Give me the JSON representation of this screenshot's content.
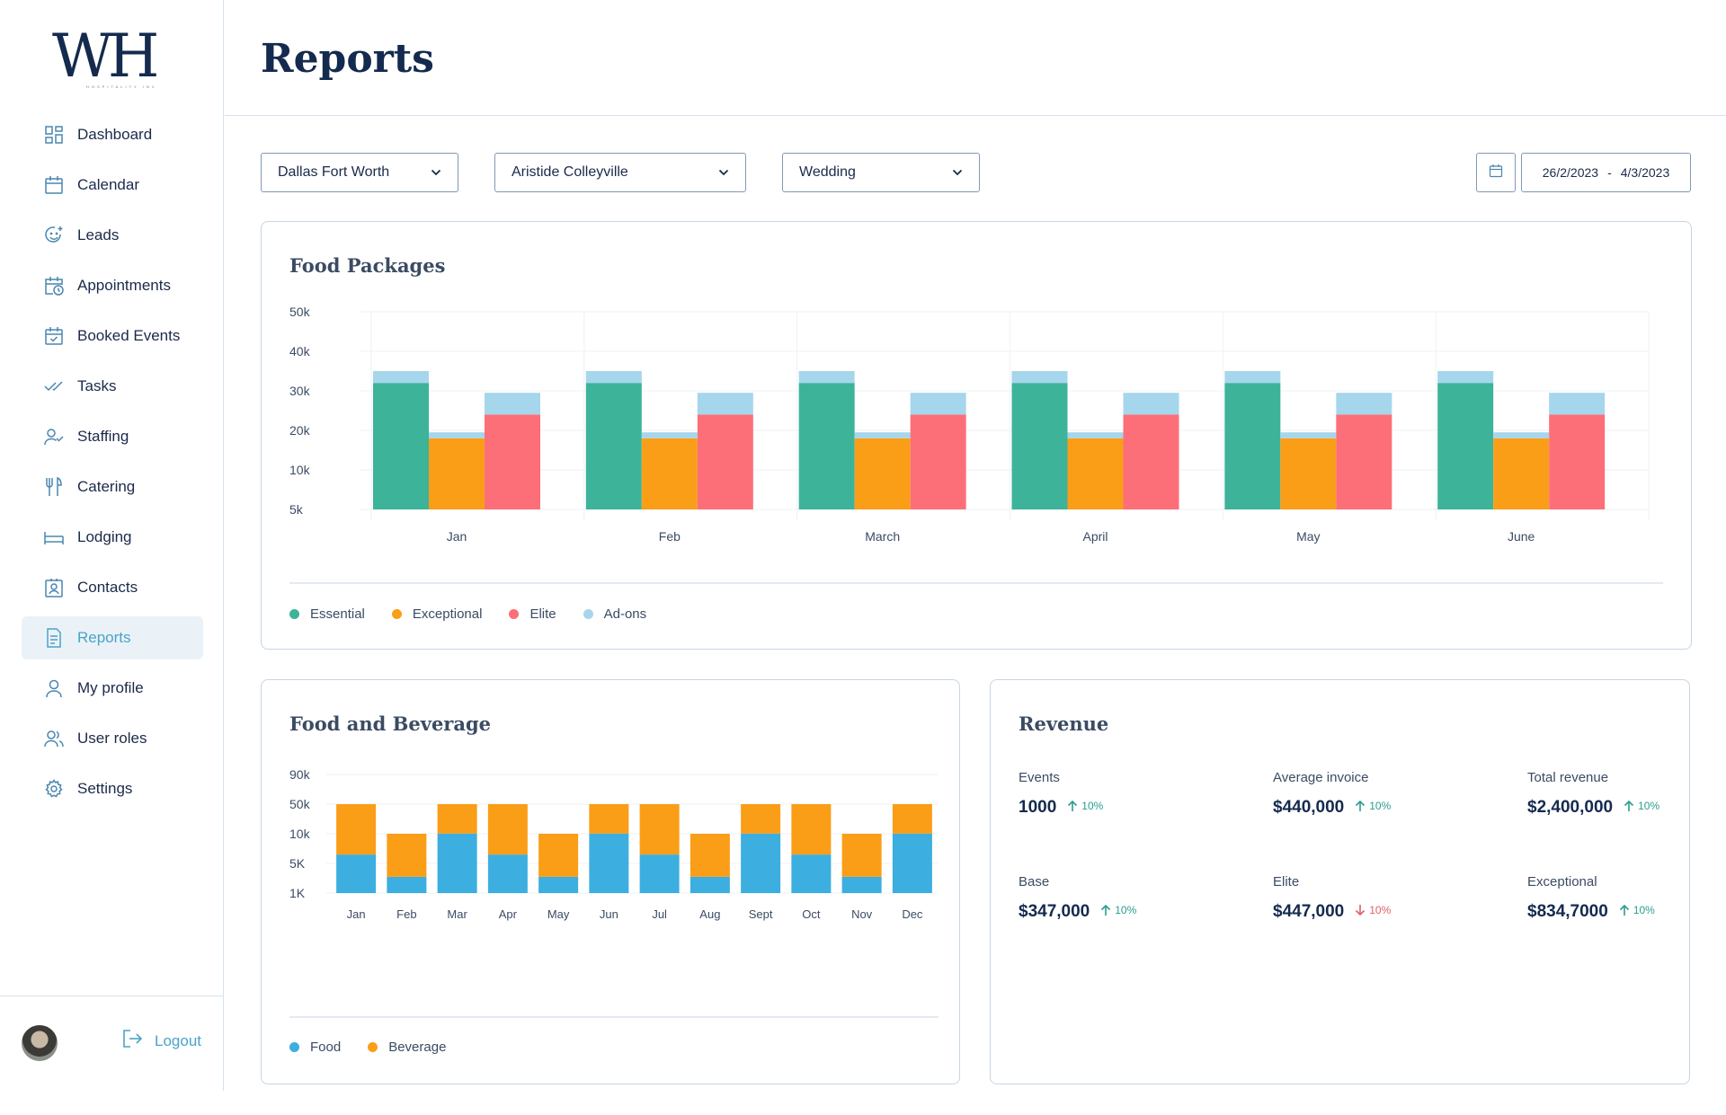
{
  "app": {
    "logo_text": "WH",
    "logo_subtext": "HOSPITALITY INC"
  },
  "sidebar": {
    "items": [
      {
        "label": "Dashboard",
        "icon": "dashboard-icon"
      },
      {
        "label": "Calendar",
        "icon": "calendar-icon"
      },
      {
        "label": "Leads",
        "icon": "smile-plus-icon"
      },
      {
        "label": "Appointments",
        "icon": "calendar-clock-icon"
      },
      {
        "label": "Booked Events",
        "icon": "calendar-check-icon"
      },
      {
        "label": "Tasks",
        "icon": "double-check-icon"
      },
      {
        "label": "Staffing",
        "icon": "user-check-icon"
      },
      {
        "label": "Catering",
        "icon": "fork-knife-icon"
      },
      {
        "label": "Lodging",
        "icon": "bed-icon"
      },
      {
        "label": "Contacts",
        "icon": "contact-card-icon"
      },
      {
        "label": "Reports",
        "icon": "report-icon",
        "active": true
      },
      {
        "label": "My profile",
        "icon": "user-icon"
      },
      {
        "label": "User roles",
        "icon": "users-icon"
      },
      {
        "label": "Settings",
        "icon": "gear-icon"
      }
    ],
    "logout_label": "Logout"
  },
  "header": {
    "title": "Reports"
  },
  "filters": {
    "region": "Dallas Fort Worth",
    "venue": "Aristide Colleyville",
    "event_type": "Wedding",
    "date_start": "26/2/2023",
    "date_separator": "-",
    "date_end": "4/3/2023"
  },
  "food_packages": {
    "title": "Food Packages",
    "legend": [
      "Essential",
      "Exceptional",
      "Elite",
      "Ad-ons"
    ]
  },
  "food_beverage": {
    "title": "Food and Beverage",
    "legend": [
      "Food",
      "Beverage"
    ]
  },
  "revenue": {
    "title": "Revenue",
    "stats": [
      {
        "name": "Events",
        "value": "1000",
        "trend": "10%",
        "direction": "up"
      },
      {
        "name": "Average invoice",
        "value": "$440,000",
        "trend": "10%",
        "direction": "up"
      },
      {
        "name": "Total revenue",
        "value": "$2,400,000",
        "trend": "10%",
        "direction": "up"
      },
      {
        "name": "Base",
        "value": "$347,000",
        "trend": "10%",
        "direction": "up"
      },
      {
        "name": "Elite",
        "value": "$447,000",
        "trend": "10%",
        "direction": "down"
      },
      {
        "name": "Exceptional",
        "value": "$834,7000",
        "trend": "10%",
        "direction": "up"
      }
    ]
  },
  "colors": {
    "essential": "#3db39a",
    "exceptional": "#fa9e18",
    "elite": "#fd6f78",
    "addons": "#a6d6ec",
    "food": "#3daee0",
    "beverage": "#fa9e18",
    "up": "#2a9d8f",
    "down": "#e35d6a",
    "accent": "#4aa3c8"
  },
  "chart_data": [
    {
      "type": "bar",
      "title": "Food Packages",
      "categories": [
        "Jan",
        "Feb",
        "March",
        "April",
        "May",
        "June"
      ],
      "y_tick_labels": [
        "5k",
        "10k",
        "20k",
        "30k",
        "40k",
        "50k"
      ],
      "ylim": [
        5000,
        50000
      ],
      "stacked_bars_per_category": true,
      "series": [
        {
          "name": "Essential",
          "values": [
            32000,
            32000,
            32000,
            32000,
            32000,
            32000
          ],
          "addon": [
            3000,
            3000,
            3000,
            3000,
            3000,
            3000
          ]
        },
        {
          "name": "Exceptional",
          "values": [
            18000,
            18000,
            18000,
            18000,
            18000,
            18000
          ],
          "addon": [
            1500,
            1500,
            1500,
            1500,
            1500,
            1500
          ]
        },
        {
          "name": "Elite",
          "values": [
            24000,
            24000,
            24000,
            24000,
            24000,
            24000
          ],
          "addon": [
            5500,
            5500,
            5500,
            5500,
            5500,
            5500
          ]
        }
      ],
      "addon_series_name": "Ad-ons",
      "grid": true,
      "legend_position": "bottom-left"
    },
    {
      "type": "bar",
      "title": "Food and Beverage",
      "categories": [
        "Jan",
        "Feb",
        "Mar",
        "Apr",
        "May",
        "Jun",
        "Jul",
        "Aug",
        "Sept",
        "Oct",
        "Nov",
        "Dec"
      ],
      "y_tick_labels": [
        "1K",
        "5K",
        "10k",
        "50k",
        "90k"
      ],
      "stacked": true,
      "series": [
        {
          "name": "Food",
          "values": [
            6500,
            3200,
            10300,
            6500,
            3200,
            10300,
            6500,
            3200,
            10300,
            6500,
            3200,
            10300
          ]
        },
        {
          "name": "Beverage",
          "values": [
            43500,
            6800,
            39700,
            43500,
            6800,
            39700,
            43500,
            6800,
            39700,
            43500,
            6800,
            39700
          ]
        }
      ],
      "grid": true,
      "legend_position": "bottom-left"
    }
  ]
}
